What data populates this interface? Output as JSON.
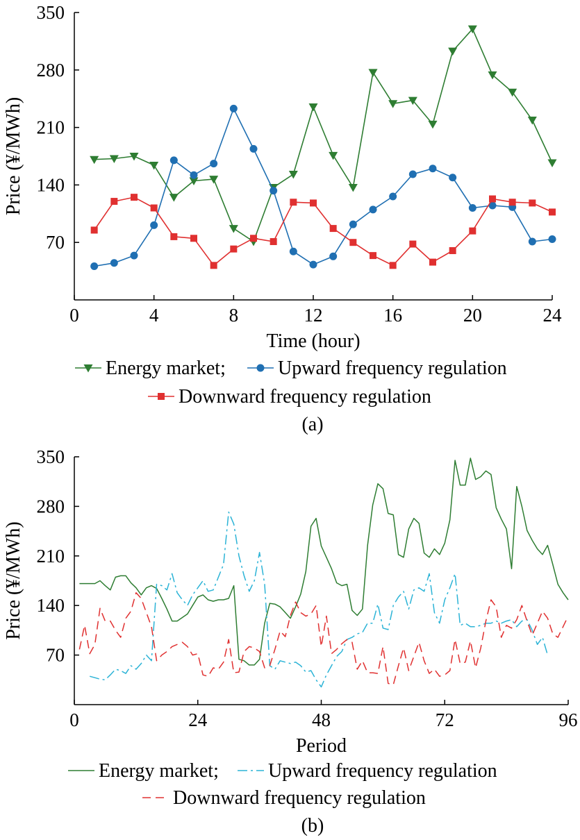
{
  "chart_data": [
    {
      "type": "line",
      "panel_label": "(a)",
      "xlabel": "Time (hour)",
      "ylabel": "Price (¥/MWh)",
      "xlim": [
        0,
        24
      ],
      "ylim": [
        0,
        350
      ],
      "xticks": [
        "0",
        "4",
        "8",
        "12",
        "16",
        "20",
        "24"
      ],
      "yticks": [
        "70",
        "140",
        "210",
        "280",
        "350"
      ],
      "legend_rows": [
        [
          {
            "name": "Energy market;",
            "series": 0
          },
          {
            "name": "Upward frequency regulation",
            "series": 1
          }
        ],
        [
          {
            "name": "Downward frequency regulation",
            "series": 2
          }
        ]
      ],
      "x": [
        1,
        2,
        3,
        4,
        5,
        6,
        7,
        8,
        9,
        10,
        11,
        12,
        13,
        14,
        15,
        16,
        17,
        18,
        19,
        20,
        21,
        22,
        23,
        24
      ],
      "series": [
        {
          "name": "Energy market",
          "color": "#2e7d32",
          "marker": "triangle-down",
          "values": [
            171,
            172,
            175,
            164,
            125,
            145,
            147,
            87,
            71,
            137,
            153,
            235,
            176,
            137,
            277,
            239,
            243,
            214,
            303,
            330,
            274,
            253,
            219,
            167
          ]
        },
        {
          "name": "Upward frequency regulation",
          "color": "#1f6fb2",
          "marker": "circle",
          "values": [
            41,
            45,
            54,
            91,
            170,
            152,
            166,
            233,
            184,
            133,
            59,
            43,
            53,
            92,
            110,
            126,
            153,
            160,
            149,
            112,
            115,
            113,
            71,
            74
          ]
        },
        {
          "name": "Downward frequency regulation",
          "color": "#e03030",
          "marker": "square",
          "values": [
            85,
            120,
            125,
            112,
            77,
            75,
            42,
            62,
            75,
            71,
            119,
            118,
            87,
            70,
            54,
            42,
            68,
            46,
            60,
            84,
            123,
            119,
            118,
            107
          ]
        }
      ]
    },
    {
      "type": "line",
      "panel_label": "(b)",
      "xlabel": "Period",
      "ylabel": "Price (¥/MWh)",
      "xlim": [
        0,
        96
      ],
      "ylim": [
        0,
        350
      ],
      "xticks": [
        "0",
        "24",
        "48",
        "72",
        "96"
      ],
      "yticks": [
        "70",
        "140",
        "210",
        "280",
        "350"
      ],
      "legend_rows": [
        [
          {
            "name": "Energy market;",
            "series": 0
          },
          {
            "name": "Upward frequency regulation",
            "series": 1
          }
        ],
        [
          {
            "name": "Downward frequency regulation",
            "series": 2
          }
        ]
      ],
      "series": [
        {
          "name": "Energy market",
          "color": "#2e7d32",
          "dash": "",
          "x": [
            1,
            2,
            3,
            4,
            5,
            6,
            7,
            8,
            9,
            10,
            11,
            12,
            13,
            14,
            15,
            16,
            17,
            18,
            19,
            20,
            21,
            22,
            23,
            24,
            25,
            26,
            27,
            28,
            29,
            30,
            31,
            32,
            33,
            34,
            35,
            36,
            37,
            38,
            39,
            40,
            41,
            42,
            43,
            44,
            45,
            46,
            47,
            48,
            49,
            50,
            51,
            52,
            53,
            54,
            55,
            56,
            57,
            58,
            59,
            60,
            61,
            62,
            63,
            64,
            65,
            66,
            67,
            68,
            69,
            70,
            71,
            72,
            73,
            74,
            75,
            76,
            77,
            78,
            79,
            80,
            81,
            82,
            83,
            84,
            85,
            86,
            87,
            88,
            89,
            90,
            91,
            92,
            93,
            94,
            95,
            96
          ],
          "values": [
            171,
            171,
            171,
            171,
            175,
            168,
            162,
            180,
            182,
            182,
            172,
            165,
            155,
            165,
            168,
            164,
            150,
            135,
            118,
            118,
            123,
            128,
            140,
            152,
            155,
            148,
            146,
            148,
            148,
            150,
            168,
            64,
            62,
            56,
            56,
            64,
            115,
            143,
            142,
            138,
            130,
            122,
            138,
            156,
            188,
            252,
            263,
            224,
            208,
            192,
            172,
            168,
            170,
            133,
            126,
            135,
            225,
            282,
            312,
            305,
            270,
            268,
            212,
            208,
            248,
            263,
            256,
            214,
            208,
            220,
            212,
            228,
            261,
            345,
            310,
            310,
            348,
            318,
            322,
            330,
            325,
            278,
            262,
            248,
            192,
            308,
            280,
            246,
            232,
            220,
            212,
            225,
            198,
            170,
            158,
            148
          ]
        },
        {
          "name": "Upward frequency regulation",
          "color": "#2bb3d6",
          "dash": "14,5,3,5",
          "x": [
            3,
            4,
            5,
            6,
            7,
            8,
            9,
            10,
            11,
            12,
            13,
            14,
            15,
            16,
            17,
            18,
            19,
            20,
            21,
            22,
            23,
            24,
            25,
            26,
            27,
            28,
            29,
            30,
            31,
            32,
            33,
            34,
            35,
            36,
            37,
            38,
            39,
            40,
            41,
            42,
            43,
            44,
            45,
            46,
            47,
            48,
            49,
            50,
            51,
            52,
            53,
            54,
            55,
            56,
            57,
            58,
            59,
            60,
            61,
            62,
            63,
            64,
            65,
            66,
            67,
            68,
            69,
            70,
            71,
            72,
            73,
            74,
            75,
            76,
            77,
            78,
            79,
            80,
            81,
            82,
            83,
            84,
            85,
            86,
            87,
            88,
            89,
            90,
            91,
            92
          ],
          "values": [
            40,
            38,
            36,
            35,
            42,
            50,
            48,
            44,
            55,
            50,
            58,
            70,
            62,
            170,
            168,
            162,
            185,
            158,
            148,
            140,
            155,
            165,
            175,
            160,
            162,
            180,
            198,
            272,
            255,
            210,
            182,
            160,
            175,
            215,
            170,
            55,
            50,
            62,
            60,
            58,
            60,
            55,
            46,
            48,
            35,
            25,
            42,
            55,
            68,
            75,
            92,
            95,
            100,
            102,
            115,
            115,
            142,
            108,
            106,
            140,
            152,
            160,
            135,
            162,
            165,
            160,
            185,
            130,
            115,
            148,
            165,
            185,
            112,
            115,
            110,
            110,
            112,
            115,
            115,
            118,
            115,
            118,
            120,
            110,
            118,
            120,
            105,
            85,
            95,
            70
          ]
        },
        {
          "name": "Downward frequency regulation",
          "color": "#e03030",
          "dash": "12,7",
          "x": [
            1,
            2,
            3,
            4,
            5,
            6,
            7,
            8,
            9,
            10,
            11,
            12,
            13,
            14,
            15,
            16,
            17,
            18,
            19,
            20,
            21,
            22,
            23,
            24,
            25,
            26,
            27,
            28,
            29,
            30,
            31,
            32,
            33,
            34,
            35,
            36,
            37,
            38,
            39,
            40,
            41,
            42,
            43,
            44,
            45,
            46,
            47,
            48,
            49,
            50,
            51,
            52,
            53,
            54,
            55,
            56,
            57,
            58,
            59,
            60,
            61,
            62,
            63,
            64,
            65,
            66,
            67,
            68,
            69,
            70,
            71,
            72,
            73,
            74,
            75,
            76,
            77,
            78,
            79,
            80,
            81,
            82,
            83,
            84,
            85,
            86,
            87,
            88,
            89,
            90,
            91,
            92,
            93,
            94,
            95,
            96
          ],
          "values": [
            78,
            112,
            72,
            85,
            136,
            118,
            118,
            105,
            95,
            122,
            132,
            158,
            150,
            130,
            110,
            62,
            70,
            75,
            82,
            85,
            88,
            82,
            70,
            72,
            42,
            40,
            52,
            50,
            60,
            92,
            45,
            46,
            75,
            82,
            80,
            75,
            52,
            55,
            78,
            104,
            96,
            126,
            145,
            130,
            125,
            128,
            140,
            82,
            125,
            72,
            78,
            86,
            92,
            88,
            50,
            62,
            45,
            45,
            44,
            82,
            30,
            28,
            55,
            80,
            48,
            68,
            88,
            62,
            44,
            50,
            40,
            42,
            48,
            92,
            58,
            60,
            90,
            52,
            80,
            118,
            148,
            138,
            95,
            112,
            108,
            120,
            140,
            118,
            98,
            115,
            132,
            122,
            100,
            95,
            110,
            125
          ]
        }
      ]
    }
  ]
}
